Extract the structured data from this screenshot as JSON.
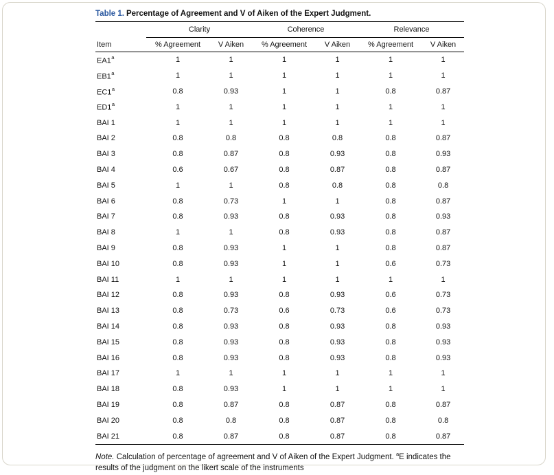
{
  "caption": {
    "label": "Table 1.",
    "text": "Percentage of Agreement and V of Aiken of the Expert Judgment."
  },
  "table": {
    "item_header": "Item",
    "groups": [
      "Clarity",
      "Coherence",
      "Relevance"
    ],
    "sub_headers": [
      "% Agreement",
      "V Aiken",
      "% Agreement",
      "V Aiken",
      "% Agreement",
      "V Aiken"
    ],
    "rows": [
      {
        "item": "EA1",
        "sup": "a",
        "values": [
          "1",
          "1",
          "1",
          "1",
          "1",
          "1"
        ]
      },
      {
        "item": "EB1",
        "sup": "a",
        "values": [
          "1",
          "1",
          "1",
          "1",
          "1",
          "1"
        ]
      },
      {
        "item": "EC1",
        "sup": "a",
        "values": [
          "0.8",
          "0.93",
          "1",
          "1",
          "0.8",
          "0.87"
        ]
      },
      {
        "item": "ED1",
        "sup": "a",
        "values": [
          "1",
          "1",
          "1",
          "1",
          "1",
          "1"
        ]
      },
      {
        "item": "BAI 1",
        "sup": "",
        "values": [
          "1",
          "1",
          "1",
          "1",
          "1",
          "1"
        ]
      },
      {
        "item": "BAI 2",
        "sup": "",
        "values": [
          "0.8",
          "0.8",
          "0.8",
          "0.8",
          "0.8",
          "0.87"
        ]
      },
      {
        "item": "BAI 3",
        "sup": "",
        "values": [
          "0.8",
          "0.87",
          "0.8",
          "0.93",
          "0.8",
          "0.93"
        ]
      },
      {
        "item": "BAI 4",
        "sup": "",
        "values": [
          "0.6",
          "0.67",
          "0.8",
          "0.87",
          "0.8",
          "0.87"
        ]
      },
      {
        "item": "BAI 5",
        "sup": "",
        "values": [
          "1",
          "1",
          "0.8",
          "0.8",
          "0.8",
          "0.8"
        ]
      },
      {
        "item": "BAI 6",
        "sup": "",
        "values": [
          "0.8",
          "0.73",
          "1",
          "1",
          "0.8",
          "0.87"
        ]
      },
      {
        "item": "BAI 7",
        "sup": "",
        "values": [
          "0.8",
          "0.93",
          "0.8",
          "0.93",
          "0.8",
          "0.93"
        ]
      },
      {
        "item": "BAI 8",
        "sup": "",
        "values": [
          "1",
          "1",
          "0.8",
          "0.93",
          "0.8",
          "0.87"
        ]
      },
      {
        "item": "BAI 9",
        "sup": "",
        "values": [
          "0.8",
          "0.93",
          "1",
          "1",
          "0.8",
          "0.87"
        ]
      },
      {
        "item": "BAI 10",
        "sup": "",
        "values": [
          "0.8",
          "0.93",
          "1",
          "1",
          "0.6",
          "0.73"
        ]
      },
      {
        "item": "BAI 11",
        "sup": "",
        "values": [
          "1",
          "1",
          "1",
          "1",
          "1",
          "1"
        ]
      },
      {
        "item": "BAI 12",
        "sup": "",
        "values": [
          "0.8",
          "0.93",
          "0.8",
          "0.93",
          "0.6",
          "0.73"
        ]
      },
      {
        "item": "BAI 13",
        "sup": "",
        "values": [
          "0.8",
          "0.73",
          "0.6",
          "0.73",
          "0.6",
          "0.73"
        ]
      },
      {
        "item": "BAI 14",
        "sup": "",
        "values": [
          "0.8",
          "0.93",
          "0.8",
          "0.93",
          "0.8",
          "0.93"
        ]
      },
      {
        "item": "BAI 15",
        "sup": "",
        "values": [
          "0.8",
          "0.93",
          "0.8",
          "0.93",
          "0.8",
          "0.93"
        ]
      },
      {
        "item": "BAI 16",
        "sup": "",
        "values": [
          "0.8",
          "0.93",
          "0.8",
          "0.93",
          "0.8",
          "0.93"
        ]
      },
      {
        "item": "BAI 17",
        "sup": "",
        "values": [
          "1",
          "1",
          "1",
          "1",
          "1",
          "1"
        ]
      },
      {
        "item": "BAI 18",
        "sup": "",
        "values": [
          "0.8",
          "0.93",
          "1",
          "1",
          "1",
          "1"
        ]
      },
      {
        "item": "BAI 19",
        "sup": "",
        "values": [
          "0.8",
          "0.87",
          "0.8",
          "0.87",
          "0.8",
          "0.87"
        ]
      },
      {
        "item": "BAI 20",
        "sup": "",
        "values": [
          "0.8",
          "0.8",
          "0.8",
          "0.87",
          "0.8",
          "0.8"
        ]
      },
      {
        "item": "BAI 21",
        "sup": "",
        "values": [
          "0.8",
          "0.87",
          "0.8",
          "0.87",
          "0.8",
          "0.87"
        ]
      }
    ]
  },
  "note": {
    "label": "Note.",
    "text1": " Calculation of percentage of agreement and V of Aiken of the Expert Judgment. ",
    "sup": "a",
    "text2": "E indicates the results of the judgment on the likert scale of the instruments"
  },
  "colors": {
    "caption_accent": "#2a58a0",
    "frame_border": "#d8d5ca",
    "table_rule": "#000000"
  }
}
